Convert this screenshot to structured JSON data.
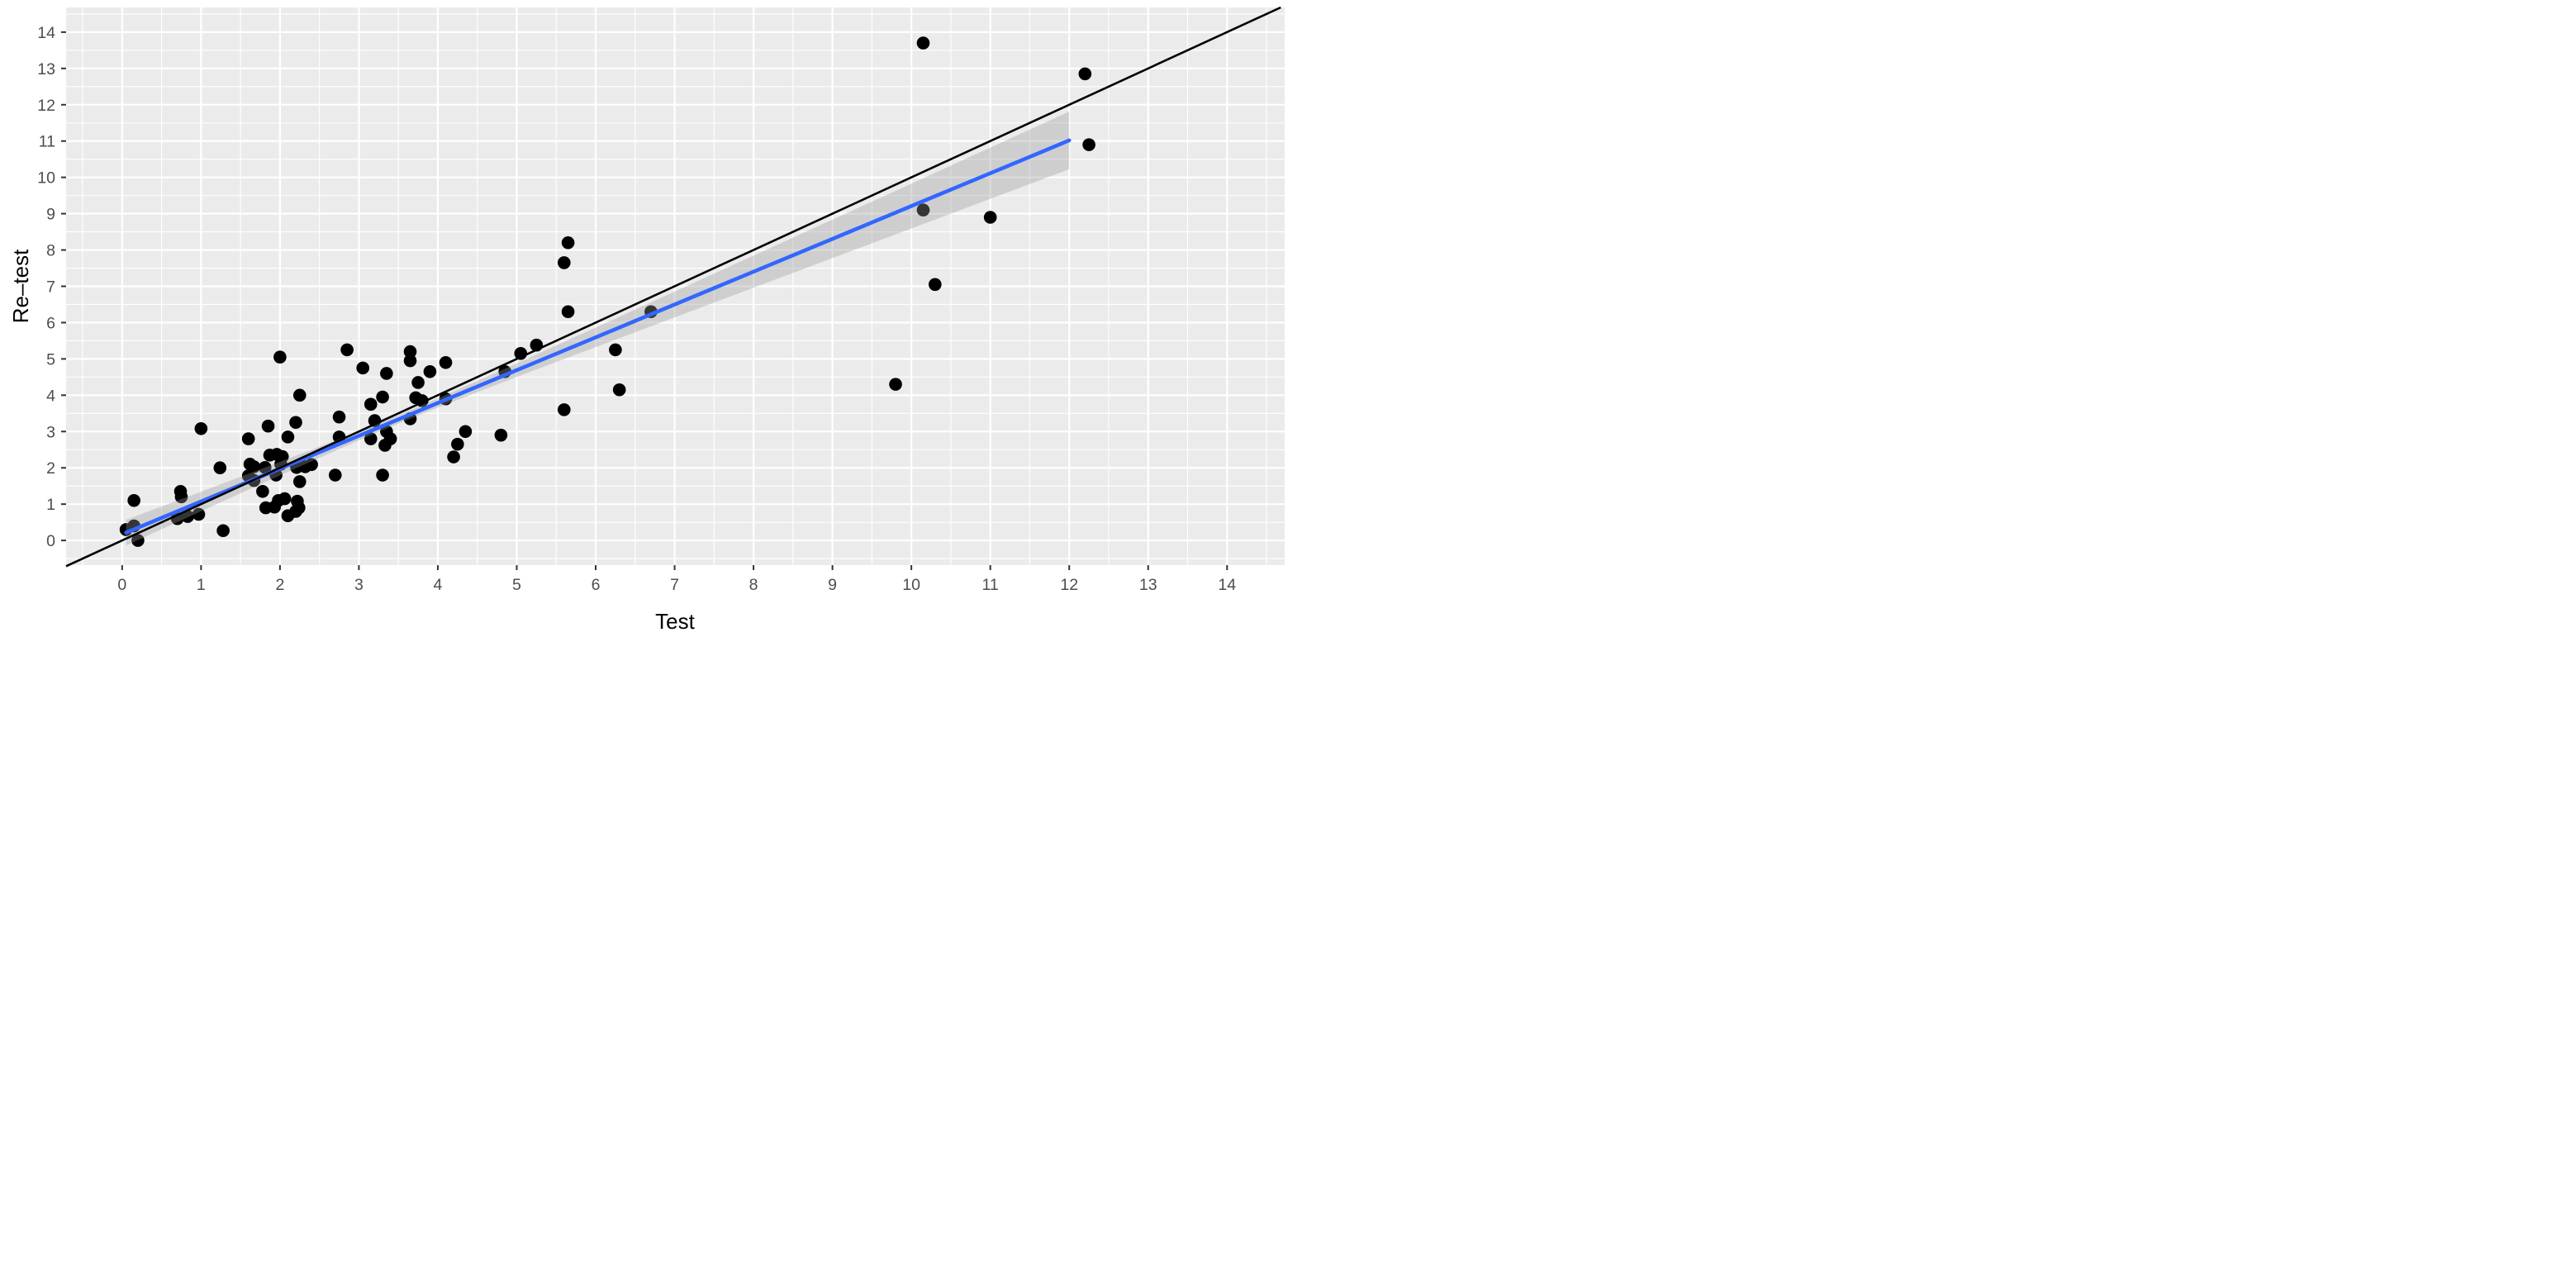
{
  "chart_data": {
    "type": "scatter",
    "title": "",
    "xlabel": "Test",
    "ylabel": "Re–test",
    "xlim": [
      -0.71,
      14.73
    ],
    "ylim": [
      -0.68,
      14.68
    ],
    "x_ticks": [
      0,
      1,
      2,
      3,
      4,
      5,
      6,
      7,
      8,
      9,
      10,
      11,
      12,
      13,
      14
    ],
    "y_ticks": [
      0,
      1,
      2,
      3,
      4,
      5,
      6,
      7,
      8,
      9,
      10,
      11,
      12,
      13,
      14
    ],
    "grid": {
      "major": true,
      "minor": true,
      "minor_step": 0.5
    },
    "legend": "none",
    "panel_bg": "#ebebeb",
    "grid_color": "#ffffff",
    "tick_mark_color": "#333333",
    "tick_label_color": "#4d4d4d",
    "point_color": "#000000",
    "point_radius": 7.8,
    "points": [
      [
        0.05,
        0.3
      ],
      [
        0.15,
        0.4
      ],
      [
        0.2,
        0.0
      ],
      [
        0.15,
        1.1
      ],
      [
        0.7,
        0.6
      ],
      [
        0.83,
        0.66
      ],
      [
        0.97,
        0.72
      ],
      [
        0.75,
        1.2
      ],
      [
        0.74,
        1.35
      ],
      [
        1.0,
        3.08
      ],
      [
        1.24,
        2.0
      ],
      [
        1.28,
        0.27
      ],
      [
        1.62,
        2.1
      ],
      [
        1.67,
        2.03
      ],
      [
        1.81,
        2.01
      ],
      [
        2.01,
        2.1
      ],
      [
        2.21,
        2.01
      ],
      [
        2.32,
        2.03
      ],
      [
        2.4,
        2.09
      ],
      [
        1.87,
        2.35
      ],
      [
        1.96,
        2.37
      ],
      [
        2.03,
        2.31
      ],
      [
        1.6,
        1.78
      ],
      [
        1.67,
        1.65
      ],
      [
        1.95,
        1.8
      ],
      [
        1.78,
        1.35
      ],
      [
        1.82,
        0.9
      ],
      [
        1.93,
        0.92
      ],
      [
        1.98,
        1.1
      ],
      [
        2.06,
        1.15
      ],
      [
        2.22,
        1.08
      ],
      [
        2.24,
        0.9
      ],
      [
        2.2,
        0.8
      ],
      [
        2.1,
        0.68
      ],
      [
        2.25,
        1.62
      ],
      [
        1.6,
        2.8
      ],
      [
        1.85,
        3.15
      ],
      [
        2.1,
        2.85
      ],
      [
        2.2,
        3.25
      ],
      [
        2.25,
        4.0
      ],
      [
        2.0,
        5.05
      ],
      [
        2.7,
        1.8
      ],
      [
        2.75,
        2.85
      ],
      [
        2.75,
        3.4
      ],
      [
        2.85,
        5.25
      ],
      [
        3.05,
        4.75
      ],
      [
        3.15,
        2.8
      ],
      [
        3.15,
        3.75
      ],
      [
        3.2,
        3.3
      ],
      [
        3.3,
        3.95
      ],
      [
        3.35,
        3.0
      ],
      [
        3.4,
        2.8
      ],
      [
        3.33,
        2.62
      ],
      [
        3.3,
        1.8
      ],
      [
        3.35,
        4.6
      ],
      [
        3.65,
        5.2
      ],
      [
        3.65,
        4.95
      ],
      [
        3.65,
        3.35
      ],
      [
        3.72,
        3.93
      ],
      [
        3.8,
        3.85
      ],
      [
        3.9,
        4.65
      ],
      [
        3.75,
        4.35
      ],
      [
        4.1,
        3.9
      ],
      [
        4.1,
        4.9
      ],
      [
        4.2,
        2.3
      ],
      [
        4.25,
        2.65
      ],
      [
        4.35,
        3.0
      ],
      [
        4.8,
        2.9
      ],
      [
        4.85,
        4.65
      ],
      [
        5.05,
        5.15
      ],
      [
        5.25,
        5.38
      ],
      [
        5.6,
        3.6
      ],
      [
        5.6,
        7.65
      ],
      [
        5.65,
        8.2
      ],
      [
        5.65,
        6.3
      ],
      [
        6.25,
        5.25
      ],
      [
        6.3,
        4.15
      ],
      [
        6.7,
        6.3
      ],
      [
        9.8,
        4.3
      ],
      [
        10.15,
        13.7
      ],
      [
        10.15,
        9.1
      ],
      [
        10.3,
        7.05
      ],
      [
        11.0,
        8.9
      ],
      [
        12.2,
        12.85
      ],
      [
        12.25,
        10.9
      ]
    ],
    "identity_line": {
      "from": [
        -0.71,
        -0.71
      ],
      "to": [
        14.68,
        14.68
      ],
      "color": "#000000",
      "width": 2.6
    },
    "regression_line": {
      "from": [
        0.05,
        0.215
      ],
      "to": [
        12,
        11.018
      ],
      "color": "#3366FF",
      "width": 4.6
    },
    "confidence_band": {
      "color": "#999999",
      "opacity": 0.35,
      "upper": [
        [
          0.05,
          0.57
        ],
        [
          0.31,
          0.781
        ],
        [
          1,
          1.343
        ],
        [
          2,
          2.164
        ],
        [
          3,
          3.006
        ],
        [
          3.5,
          3.448
        ],
        [
          4,
          3.91
        ],
        [
          5,
          4.876
        ],
        [
          6,
          5.863
        ],
        [
          7,
          6.853
        ],
        [
          8,
          7.845
        ],
        [
          9,
          8.836
        ],
        [
          10,
          9.828
        ],
        [
          11,
          10.82
        ],
        [
          12,
          11.812
        ]
      ],
      "lower": [
        [
          0.05,
          -0.14
        ],
        [
          0.31,
          0.119
        ],
        [
          1,
          0.805
        ],
        [
          2,
          1.793
        ],
        [
          3,
          2.758
        ],
        [
          3.5,
          3.22
        ],
        [
          4,
          3.662
        ],
        [
          5,
          4.505
        ],
        [
          6,
          5.325
        ],
        [
          7,
          6.143
        ],
        [
          8,
          6.96
        ],
        [
          9,
          7.776
        ],
        [
          10,
          8.592
        ],
        [
          11,
          9.408
        ],
        [
          12,
          10.224
        ]
      ]
    }
  }
}
